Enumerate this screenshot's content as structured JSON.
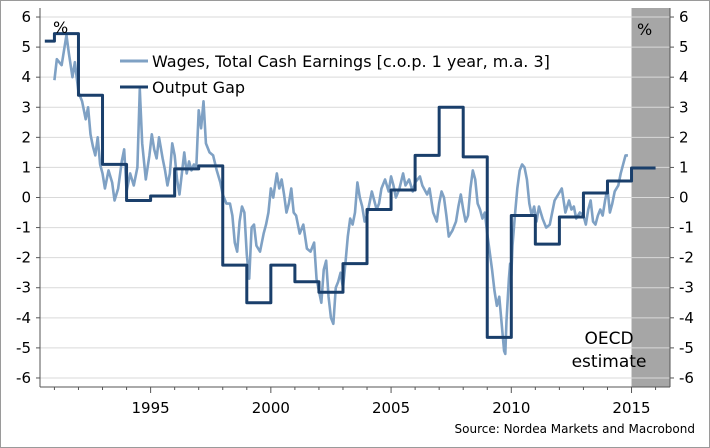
{
  "chart_data": {
    "type": "line",
    "title": "",
    "xlabel": "",
    "ylabel": "",
    "xlim": [
      1990.4,
      2016.6
    ],
    "ylim": [
      -6.3,
      6.3
    ],
    "x_ticks": [
      "1995",
      "2000",
      "2005",
      "2010",
      "2015"
    ],
    "y_ticks": [
      "6",
      "5",
      "4",
      "3",
      "2",
      "1",
      "0",
      "-1",
      "-2",
      "-3",
      "-4",
      "-5",
      "-6"
    ],
    "left_unit": "%",
    "right_unit": "%",
    "grid": "horizontal",
    "legend_position": "top-center",
    "shaded_region": {
      "x_from": 2015.0,
      "x_to": 2016.6,
      "label_line1": "OECD",
      "label_line2": "estimate",
      "color": "#a6a6a6"
    },
    "source": "Source: Nordea Markets and Macrobond",
    "series": [
      {
        "name": "Wages, Total Cash Earnings [c.o.p. 1 year, m.a. 3]",
        "color": "#7fa1c4",
        "points": [
          [
            1991.0,
            3.9
          ],
          [
            1991.1,
            4.6
          ],
          [
            1991.3,
            4.4
          ],
          [
            1991.5,
            5.4
          ],
          [
            1991.6,
            4.8
          ],
          [
            1991.75,
            4.0
          ],
          [
            1991.85,
            4.5
          ],
          [
            1992.0,
            3.5
          ],
          [
            1992.15,
            3.2
          ],
          [
            1992.3,
            2.6
          ],
          [
            1992.4,
            3.0
          ],
          [
            1992.5,
            2.1
          ],
          [
            1992.6,
            1.7
          ],
          [
            1992.7,
            1.4
          ],
          [
            1992.8,
            2.0
          ],
          [
            1992.9,
            1.1
          ],
          [
            1993.0,
            0.8
          ],
          [
            1993.1,
            0.3
          ],
          [
            1993.25,
            0.9
          ],
          [
            1993.4,
            0.5
          ],
          [
            1993.5,
            -0.1
          ],
          [
            1993.65,
            0.3
          ],
          [
            1993.8,
            1.2
          ],
          [
            1993.9,
            1.6
          ],
          [
            1994.0,
            0.2
          ],
          [
            1994.15,
            0.8
          ],
          [
            1994.3,
            0.4
          ],
          [
            1994.45,
            1.0
          ],
          [
            1994.55,
            3.6
          ],
          [
            1994.65,
            1.8
          ],
          [
            1994.8,
            0.6
          ],
          [
            1994.95,
            1.4
          ],
          [
            1995.05,
            2.1
          ],
          [
            1995.15,
            1.6
          ],
          [
            1995.25,
            1.3
          ],
          [
            1995.35,
            2.0
          ],
          [
            1995.5,
            1.3
          ],
          [
            1995.6,
            0.9
          ],
          [
            1995.7,
            0.4
          ],
          [
            1995.8,
            0.8
          ],
          [
            1995.9,
            1.8
          ],
          [
            1996.0,
            1.4
          ],
          [
            1996.1,
            0.6
          ],
          [
            1996.2,
            0.1
          ],
          [
            1996.3,
            0.8
          ],
          [
            1996.4,
            1.5
          ],
          [
            1996.5,
            0.8
          ],
          [
            1996.6,
            1.2
          ],
          [
            1996.7,
            0.9
          ],
          [
            1996.8,
            1.1
          ],
          [
            1996.9,
            1.0
          ],
          [
            1997.0,
            2.9
          ],
          [
            1997.1,
            2.3
          ],
          [
            1997.2,
            3.2
          ],
          [
            1997.3,
            1.8
          ],
          [
            1997.45,
            1.5
          ],
          [
            1997.6,
            1.4
          ],
          [
            1997.75,
            0.9
          ],
          [
            1997.9,
            0.5
          ],
          [
            1998.0,
            0.1
          ],
          [
            1998.15,
            -0.2
          ],
          [
            1998.3,
            -0.2
          ],
          [
            1998.4,
            -0.6
          ],
          [
            1998.5,
            -1.5
          ],
          [
            1998.6,
            -1.8
          ],
          [
            1998.7,
            -0.8
          ],
          [
            1998.8,
            -0.3
          ],
          [
            1998.9,
            -0.5
          ],
          [
            1999.0,
            -1.9
          ],
          [
            1999.1,
            -2.7
          ],
          [
            1999.2,
            -1.0
          ],
          [
            1999.3,
            -0.9
          ],
          [
            1999.4,
            -1.6
          ],
          [
            1999.55,
            -1.8
          ],
          [
            1999.7,
            -1.2
          ],
          [
            1999.8,
            -0.9
          ],
          [
            1999.9,
            -0.5
          ],
          [
            2000.0,
            0.3
          ],
          [
            2000.1,
            0.0
          ],
          [
            2000.25,
            0.8
          ],
          [
            2000.35,
            0.3
          ],
          [
            2000.45,
            0.6
          ],
          [
            2000.55,
            0.1
          ],
          [
            2000.65,
            -0.5
          ],
          [
            2000.75,
            -0.2
          ],
          [
            2000.85,
            0.3
          ],
          [
            2000.95,
            -0.5
          ],
          [
            2001.05,
            -0.6
          ],
          [
            2001.2,
            -1.2
          ],
          [
            2001.35,
            -0.9
          ],
          [
            2001.5,
            -1.7
          ],
          [
            2001.65,
            -1.8
          ],
          [
            2001.8,
            -1.5
          ],
          [
            2001.9,
            -2.7
          ],
          [
            2002.0,
            -3.1
          ],
          [
            2002.1,
            -3.5
          ],
          [
            2002.2,
            -2.4
          ],
          [
            2002.3,
            -2.1
          ],
          [
            2002.4,
            -3.3
          ],
          [
            2002.5,
            -4.0
          ],
          [
            2002.6,
            -4.2
          ],
          [
            2002.7,
            -3.0
          ],
          [
            2002.8,
            -2.8
          ],
          [
            2002.9,
            -2.5
          ],
          [
            2003.0,
            -3.0
          ],
          [
            2003.1,
            -2.2
          ],
          [
            2003.2,
            -1.3
          ],
          [
            2003.3,
            -0.7
          ],
          [
            2003.4,
            -0.9
          ],
          [
            2003.5,
            -0.5
          ],
          [
            2003.6,
            0.5
          ],
          [
            2003.7,
            0.0
          ],
          [
            2003.8,
            -0.3
          ],
          [
            2003.9,
            -0.8
          ],
          [
            2004.0,
            -0.6
          ],
          [
            2004.1,
            -0.2
          ],
          [
            2004.2,
            0.2
          ],
          [
            2004.3,
            -0.1
          ],
          [
            2004.4,
            -0.4
          ],
          [
            2004.5,
            -0.2
          ],
          [
            2004.6,
            0.3
          ],
          [
            2004.75,
            0.6
          ],
          [
            2004.9,
            0.2
          ],
          [
            2005.0,
            0.7
          ],
          [
            2005.1,
            0.4
          ],
          [
            2005.2,
            0.0
          ],
          [
            2005.35,
            0.3
          ],
          [
            2005.5,
            0.8
          ],
          [
            2005.6,
            0.4
          ],
          [
            2005.75,
            0.6
          ],
          [
            2005.9,
            0.2
          ],
          [
            2006.0,
            0.5
          ],
          [
            2006.2,
            0.7
          ],
          [
            2006.3,
            0.4
          ],
          [
            2006.5,
            0.1
          ],
          [
            2006.6,
            0.3
          ],
          [
            2006.75,
            -0.5
          ],
          [
            2006.9,
            -0.8
          ],
          [
            2007.0,
            -0.2
          ],
          [
            2007.1,
            0.2
          ],
          [
            2007.2,
            0.0
          ],
          [
            2007.3,
            -0.6
          ],
          [
            2007.4,
            -1.3
          ],
          [
            2007.55,
            -1.1
          ],
          [
            2007.7,
            -0.8
          ],
          [
            2007.8,
            -0.3
          ],
          [
            2007.9,
            0.1
          ],
          [
            2008.0,
            -0.4
          ],
          [
            2008.1,
            -0.8
          ],
          [
            2008.2,
            -0.6
          ],
          [
            2008.3,
            0.3
          ],
          [
            2008.4,
            0.9
          ],
          [
            2008.5,
            0.6
          ],
          [
            2008.6,
            -0.2
          ],
          [
            2008.7,
            -0.4
          ],
          [
            2008.8,
            -0.7
          ],
          [
            2008.9,
            -0.5
          ],
          [
            2009.0,
            -1.2
          ],
          [
            2009.1,
            -1.8
          ],
          [
            2009.2,
            -2.4
          ],
          [
            2009.3,
            -3.1
          ],
          [
            2009.4,
            -3.6
          ],
          [
            2009.5,
            -3.3
          ],
          [
            2009.6,
            -4.2
          ],
          [
            2009.7,
            -5.1
          ],
          [
            2009.75,
            -5.2
          ],
          [
            2009.8,
            -4.1
          ],
          [
            2009.9,
            -2.7
          ],
          [
            2009.95,
            -2.2
          ],
          [
            2010.0,
            -2.6
          ],
          [
            2010.05,
            -1.6
          ],
          [
            2010.15,
            -0.6
          ],
          [
            2010.25,
            0.3
          ],
          [
            2010.35,
            0.9
          ],
          [
            2010.45,
            1.1
          ],
          [
            2010.55,
            1.0
          ],
          [
            2010.65,
            0.6
          ],
          [
            2010.75,
            -0.2
          ],
          [
            2010.85,
            -0.6
          ],
          [
            2010.95,
            -0.3
          ],
          [
            2011.05,
            -0.8
          ],
          [
            2011.15,
            -0.3
          ],
          [
            2011.3,
            -0.7
          ],
          [
            2011.45,
            -1.0
          ],
          [
            2011.6,
            -0.9
          ],
          [
            2011.8,
            -0.1
          ],
          [
            2011.95,
            0.1
          ],
          [
            2012.1,
            0.3
          ],
          [
            2012.25,
            -0.5
          ],
          [
            2012.4,
            -0.1
          ],
          [
            2012.5,
            -0.4
          ],
          [
            2012.6,
            -0.3
          ],
          [
            2012.7,
            -0.7
          ],
          [
            2012.85,
            -0.5
          ],
          [
            2013.0,
            -0.6
          ],
          [
            2013.1,
            -0.9
          ],
          [
            2013.2,
            -0.4
          ],
          [
            2013.3,
            -0.1
          ],
          [
            2013.4,
            -0.8
          ],
          [
            2013.5,
            -0.9
          ],
          [
            2013.6,
            -0.6
          ],
          [
            2013.7,
            -0.4
          ],
          [
            2013.8,
            -0.6
          ],
          [
            2013.9,
            -0.1
          ],
          [
            2014.0,
            0.3
          ],
          [
            2014.1,
            -0.5
          ],
          [
            2014.2,
            -0.2
          ],
          [
            2014.3,
            0.2
          ],
          [
            2014.45,
            0.4
          ],
          [
            2014.55,
            0.8
          ],
          [
            2014.65,
            1.1
          ],
          [
            2014.75,
            1.4
          ],
          [
            2014.85,
            1.4
          ]
        ]
      },
      {
        "name": "Output Gap",
        "color": "#1a3f6b",
        "points": [
          [
            1990.6,
            5.2
          ],
          [
            1991.0,
            5.2
          ],
          [
            1991.0,
            5.45
          ],
          [
            1992.0,
            5.45
          ],
          [
            1992.0,
            3.4
          ],
          [
            1993.0,
            3.4
          ],
          [
            1993.0,
            1.1
          ],
          [
            1994.0,
            1.1
          ],
          [
            1994.0,
            -0.1
          ],
          [
            1995.0,
            -0.1
          ],
          [
            1995.0,
            0.05
          ],
          [
            1996.0,
            0.05
          ],
          [
            1996.0,
            0.95
          ],
          [
            1997.0,
            0.95
          ],
          [
            1997.0,
            1.05
          ],
          [
            1998.0,
            1.05
          ],
          [
            1998.0,
            -2.25
          ],
          [
            1999.0,
            -2.25
          ],
          [
            1999.0,
            -3.5
          ],
          [
            2000.0,
            -3.5
          ],
          [
            2000.0,
            -2.25
          ],
          [
            2001.0,
            -2.25
          ],
          [
            2001.0,
            -2.8
          ],
          [
            2002.0,
            -2.8
          ],
          [
            2002.0,
            -3.15
          ],
          [
            2003.0,
            -3.15
          ],
          [
            2003.0,
            -2.2
          ],
          [
            2004.0,
            -2.2
          ],
          [
            2004.0,
            -0.4
          ],
          [
            2005.0,
            -0.4
          ],
          [
            2005.0,
            0.25
          ],
          [
            2006.0,
            0.25
          ],
          [
            2006.0,
            1.4
          ],
          [
            2007.0,
            1.4
          ],
          [
            2007.0,
            3.0
          ],
          [
            2008.0,
            3.0
          ],
          [
            2008.0,
            1.35
          ],
          [
            2009.0,
            1.35
          ],
          [
            2009.0,
            -4.65
          ],
          [
            2010.0,
            -4.65
          ],
          [
            2010.0,
            -0.6
          ],
          [
            2011.0,
            -0.6
          ],
          [
            2011.0,
            -1.55
          ],
          [
            2012.0,
            -1.55
          ],
          [
            2012.0,
            -0.65
          ],
          [
            2013.0,
            -0.65
          ],
          [
            2013.0,
            0.15
          ],
          [
            2014.0,
            0.15
          ],
          [
            2014.0,
            0.55
          ],
          [
            2015.0,
            0.55
          ],
          [
            2015.0,
            0.98
          ],
          [
            2016.0,
            0.98
          ]
        ]
      }
    ]
  }
}
